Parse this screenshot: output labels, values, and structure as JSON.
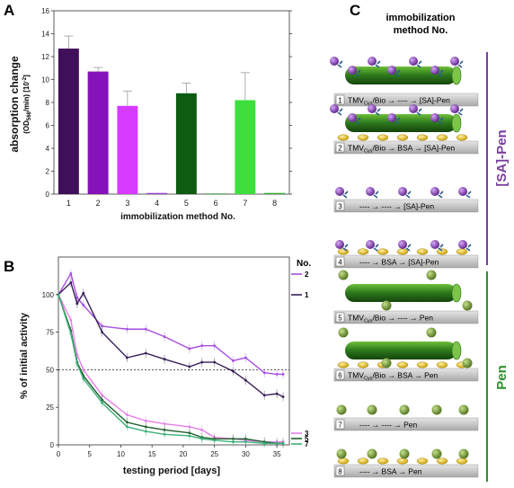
{
  "panels": {
    "a": "A",
    "b": "B",
    "c": "C"
  },
  "colors": {
    "purple": "#7a3d9e",
    "green": "#2f8f2f",
    "bar1": "#3f0f5a",
    "bar2": "#8413b9",
    "bar3": "#d63bff",
    "bar4": "#9a3dd0",
    "bar5": "#0d5c12",
    "bar6": "#2f8a2f",
    "bar7": "#3ddf3d",
    "bar8": "#2faa2f",
    "lineDark": "#3a2057",
    "lineViolet": "#a64ee0",
    "lineLight": "#e77fe8",
    "lineGreenDark": "#1e5d2b",
    "lineGreen": "#3bb078"
  },
  "chart_data": [
    {
      "type": "bar",
      "categories": [
        "1",
        "2",
        "3",
        "4",
        "5",
        "6",
        "7",
        "8"
      ],
      "values": [
        12.7,
        10.7,
        7.7,
        0.1,
        8.8,
        0.05,
        8.2,
        0.1
      ],
      "errors": [
        1.1,
        0.35,
        1.3,
        0.05,
        0.9,
        0.05,
        2.4,
        0.05
      ],
      "xlabel": "immobilization method No.",
      "ylabel_main": "absorption change",
      "ylabel_unit_pre": "(OD",
      "ylabel_unit_sub": "568",
      "ylabel_unit_post": "/min) [10",
      "ylabel_unit_sup": "-2",
      "ylabel_unit_end": "]",
      "ylim": [
        0,
        16
      ],
      "yticks": [
        "0",
        "2",
        "4",
        "6",
        "8",
        "10",
        "12",
        "14",
        "16"
      ]
    },
    {
      "type": "line",
      "xlabel": "testing period [days]",
      "ylabel": "% of initial activity",
      "xlim": [
        0,
        37
      ],
      "ylim": [
        0,
        125
      ],
      "xticks": [
        "0",
        "5",
        "10",
        "15",
        "20",
        "25",
        "30",
        "35"
      ],
      "yticks": [
        "0",
        "25",
        "50",
        "75",
        "100"
      ],
      "legend_title": "No.",
      "reference_line": 50,
      "series": [
        {
          "name": "2",
          "x": [
            0,
            2,
            3,
            4,
            7,
            11,
            14,
            17,
            21,
            23,
            25,
            28,
            30,
            33,
            35,
            36
          ],
          "y": [
            100,
            114,
            98,
            93,
            79,
            77,
            77,
            72,
            64,
            66,
            66,
            56,
            58,
            48,
            47,
            47
          ]
        },
        {
          "name": "1",
          "x": [
            0,
            2,
            3,
            4,
            7,
            11,
            14,
            17,
            21,
            23,
            25,
            28,
            30,
            33,
            35,
            36
          ],
          "y": [
            100,
            108,
            94,
            101,
            75,
            58,
            61,
            57,
            52,
            55,
            55,
            49,
            43,
            33,
            34,
            32
          ]
        },
        {
          "name": "3",
          "x": [
            0,
            2,
            3,
            4,
            7,
            11,
            14,
            17,
            21,
            23,
            25,
            28,
            30,
            33,
            35,
            36
          ],
          "y": [
            100,
            83,
            60,
            50,
            33,
            20,
            16,
            14,
            12,
            10,
            5,
            4,
            3,
            2,
            2,
            2
          ]
        },
        {
          "name": "5",
          "x": [
            0,
            2,
            3,
            4,
            7,
            11,
            14,
            17,
            21,
            23,
            25,
            28,
            30,
            33,
            35,
            36
          ],
          "y": [
            100,
            76,
            55,
            46,
            30,
            15,
            12,
            10,
            8,
            5,
            4,
            4,
            4,
            2,
            1,
            1
          ]
        },
        {
          "name": "7",
          "x": [
            0,
            2,
            3,
            4,
            7,
            11,
            14,
            17,
            21,
            23,
            25,
            28,
            30,
            33,
            35,
            36
          ],
          "y": [
            100,
            74,
            54,
            44,
            28,
            12,
            9,
            7,
            6,
            4,
            3,
            2,
            2,
            1,
            1,
            1
          ]
        }
      ]
    }
  ],
  "diagram": {
    "title_line1": "immobilization",
    "title_line2": "method No.",
    "group_sa": "[SA]-Pen",
    "group_pen": "Pen",
    "rows": [
      {
        "n": "1",
        "pre": "TMV",
        "sub": "Cys",
        "text": "/Bio → ---- → [SA]-Pen"
      },
      {
        "n": "2",
        "pre": "TMV",
        "sub": "Cys",
        "text": "/Bio → BSA → [SA]-Pen"
      },
      {
        "n": "3",
        "pre": "",
        "sub": "",
        "text": "---- → ---- → [SA]-Pen"
      },
      {
        "n": "4",
        "pre": "",
        "sub": "",
        "text": "---- → BSA → [SA]-Pen"
      },
      {
        "n": "5",
        "pre": "TMV",
        "sub": "Cys",
        "text": "/Bio → ---- → Pen"
      },
      {
        "n": "6",
        "pre": "TMV",
        "sub": "Cys",
        "text": "/Bio → BSA → Pen"
      },
      {
        "n": "7",
        "pre": "",
        "sub": "",
        "text": "---- → ---- → Pen"
      },
      {
        "n": "8",
        "pre": "",
        "sub": "",
        "text": "---- → BSA → Pen"
      }
    ]
  }
}
